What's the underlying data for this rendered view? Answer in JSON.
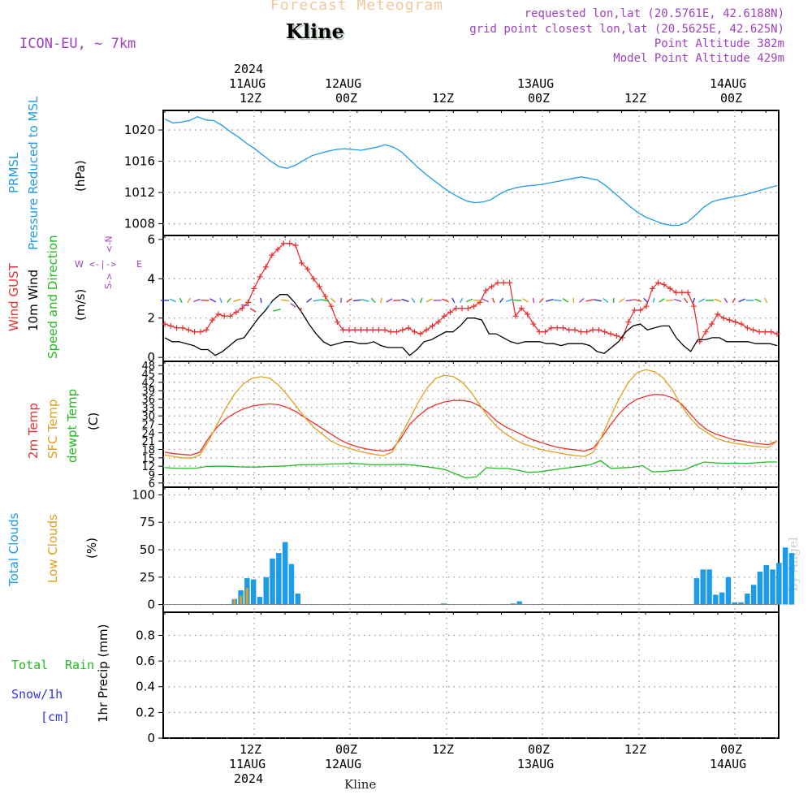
{
  "header": {
    "title": "Forecast Meteogram",
    "location": "Kline",
    "model": "ICON-EU, ~ 7km",
    "requested": "requested lon,lat (20.5761E, 42.6188N)",
    "gridpoint": "grid point closest lon,lat (20.5625E, 42.625N)",
    "point_alt": "Point Altitude 382m",
    "model_alt": "Model Point Altitude 429m",
    "credit": "by Angel",
    "footer_location": "Kline"
  },
  "colors": {
    "pressure": "#1e9be6",
    "gust": "#e83232",
    "wind": "#000000",
    "direction": "#22bb22",
    "t2m": "#e83232",
    "sfc": "#e0a020",
    "dewpt": "#22bb22",
    "clouds_total": "#1e9be6",
    "clouds_low": "#e0a020",
    "rain": "#22bb22",
    "snow": "#3333dd",
    "compass": "#a040c0",
    "meta": "#a040c0"
  },
  "time_axis": {
    "top": [
      {
        "tick": "12Z",
        "date": "11AUG",
        "year": "2024"
      },
      {
        "tick": "00Z",
        "date": "12AUG",
        "year": ""
      },
      {
        "tick": "12Z",
        "date": "",
        "year": ""
      },
      {
        "tick": "00Z",
        "date": "13AUG",
        "year": ""
      },
      {
        "tick": "12Z",
        "date": "",
        "year": ""
      },
      {
        "tick": "00Z",
        "date": "14AUG",
        "year": ""
      }
    ],
    "bottom": [
      {
        "tick": "12Z",
        "date": "11AUG",
        "year": "2024"
      },
      {
        "tick": "00Z",
        "date": "12AUG",
        "year": ""
      },
      {
        "tick": "12Z",
        "date": "",
        "year": ""
      },
      {
        "tick": "00Z",
        "date": "13AUG",
        "year": ""
      },
      {
        "tick": "12Z",
        "date": "",
        "year": ""
      },
      {
        "tick": "00Z",
        "date": "14AUG",
        "year": ""
      }
    ]
  },
  "panel_labels": {
    "pressure": {
      "line1": "PRMSL",
      "line2": "Pressure Reduced to MSL",
      "unit": "(hPa)"
    },
    "wind": {
      "gust": "Wind GUST",
      "wind": "10m Wind",
      "dir": "Speed and Direction",
      "unit": "(m/s)",
      "compass_n": "N",
      "compass_s": "S",
      "compass_w": "W",
      "compass_e": "E"
    },
    "temp": {
      "t2m": "2m Temp",
      "sfc": "SFC Temp",
      "dewpt": "dewpt Temp",
      "unit": "(C)"
    },
    "clouds": {
      "total": "Total Clouds",
      "low": "Low Clouds",
      "unit": "(%)"
    },
    "precip": {
      "rain_total": "Total",
      "rain": "Rain",
      "snow": "Snow/1h",
      "snow_unit": "[cm]",
      "ylabel": "1hr Precip (mm)"
    }
  },
  "chart_data": [
    {
      "type": "line",
      "name": "pressure",
      "ylim": [
        1006.5,
        1022.5
      ],
      "yticks": [
        {
          "v": 1008,
          "l": "1008"
        },
        {
          "v": 1012,
          "l": "1012"
        },
        {
          "v": 1016,
          "l": "1016"
        },
        {
          "v": 1020,
          "l": "1020"
        }
      ],
      "series": [
        {
          "values": [
            1021.4,
            1020.9,
            1021.0,
            1021.2,
            1021.7,
            1021.3,
            1021.2,
            1020.6,
            1019.8,
            1019.1,
            1018.3,
            1017.6,
            1016.8,
            1016.0,
            1015.3,
            1015.1,
            1015.5,
            1016.1,
            1016.7,
            1017.0,
            1017.3,
            1017.5,
            1017.6,
            1017.5,
            1017.4,
            1017.6,
            1017.8,
            1018.1,
            1017.8,
            1017.2,
            1016.2,
            1015.2,
            1014.3,
            1013.5,
            1012.7,
            1012.0,
            1011.4,
            1010.9,
            1010.7,
            1010.8,
            1011.1,
            1011.8,
            1012.3,
            1012.6,
            1012.8,
            1012.9,
            1013.0,
            1013.2,
            1013.4,
            1013.6,
            1013.8,
            1014.0,
            1013.8,
            1013.6,
            1012.9,
            1012.0,
            1011.1,
            1010.2,
            1009.4,
            1008.8,
            1008.4,
            1008.0,
            1007.8,
            1007.8,
            1008.2,
            1009.1,
            1010.1,
            1010.8,
            1011.1,
            1011.3,
            1011.5,
            1011.7,
            1012.0,
            1012.3,
            1012.6,
            1012.9
          ]
        }
      ]
    },
    {
      "type": "line",
      "name": "wind",
      "ylim": [
        -0.2,
        6.2
      ],
      "yticks": [
        {
          "v": 0,
          "l": "0"
        },
        {
          "v": 2,
          "l": "2"
        },
        {
          "v": 4,
          "l": "4"
        },
        {
          "v": 6,
          "l": "6"
        }
      ],
      "series": [
        {
          "name": "Wind GUST",
          "values": [
            1.7,
            1.6,
            1.5,
            1.5,
            1.4,
            1.3,
            1.3,
            1.4,
            1.9,
            2.2,
            2.1,
            2.1,
            2.3,
            2.5,
            2.8,
            3.5,
            4.1,
            4.6,
            5.2,
            5.5,
            5.8,
            5.8,
            5.7,
            4.8,
            4.5,
            4.0,
            3.6,
            3.1,
            2.6,
            1.8,
            1.4,
            1.4,
            1.4,
            1.4,
            1.4,
            1.4,
            1.4,
            1.4,
            1.3,
            1.3,
            1.4,
            1.5,
            1.3,
            1.2,
            1.4,
            1.6,
            1.8,
            2.1,
            2.3,
            2.5,
            2.5,
            2.5,
            2.6,
            2.8,
            3.4,
            3.6,
            3.8,
            3.8,
            3.8,
            2.1,
            2.5,
            2.2,
            1.7,
            1.3,
            1.3,
            1.5,
            1.5,
            1.5,
            1.4,
            1.4,
            1.3,
            1.3,
            1.4,
            1.4,
            1.3,
            1.2,
            1.1,
            1.0,
            1.8,
            2.4,
            2.4,
            2.6,
            3.5,
            3.8,
            3.7,
            3.5,
            3.3,
            3.3,
            3.3,
            2.6,
            0.8,
            1.3,
            1.7,
            2.2,
            2.0,
            1.9,
            1.8,
            1.7,
            1.5,
            1.4,
            1.3,
            1.3,
            1.3,
            1.2
          ]
        },
        {
          "name": "10m Wind",
          "values": [
            1.0,
            0.8,
            0.8,
            0.7,
            0.6,
            0.4,
            0.4,
            0.1,
            0.3,
            0.6,
            0.9,
            1.0,
            1.5,
            2.0,
            2.4,
            2.9,
            3.2,
            3.2,
            2.8,
            2.3,
            1.7,
            1.2,
            0.8,
            0.6,
            0.7,
            0.8,
            0.8,
            0.7,
            0.7,
            0.8,
            0.6,
            0.5,
            0.5,
            0.5,
            0.1,
            0.4,
            0.8,
            0.9,
            1.1,
            1.3,
            1.3,
            1.6,
            2.0,
            2.0,
            1.9,
            1.2,
            1.2,
            1.0,
            0.8,
            0.7,
            0.8,
            0.8,
            0.8,
            0.7,
            0.7,
            0.6,
            0.7,
            0.7,
            0.7,
            0.6,
            0.3,
            0.2,
            0.5,
            0.8,
            1.3,
            1.6,
            1.7,
            1.4,
            1.5,
            1.6,
            1.6,
            1.0,
            0.6,
            0.3,
            0.9,
            0.9,
            1.0,
            1.0,
            0.8,
            0.8,
            0.8,
            0.8,
            0.7,
            0.7,
            0.7,
            0.6
          ]
        }
      ]
    },
    {
      "type": "line",
      "name": "temperature",
      "ylim": [
        4.5,
        49.5
      ],
      "yticks": [
        {
          "v": 6,
          "l": "6"
        },
        {
          "v": 9,
          "l": "9"
        },
        {
          "v": 12,
          "l": "12"
        },
        {
          "v": 15,
          "l": "15"
        },
        {
          "v": 18,
          "l": "18"
        },
        {
          "v": 21,
          "l": "21"
        },
        {
          "v": 24,
          "l": "24"
        },
        {
          "v": 27,
          "l": "27"
        },
        {
          "v": 30,
          "l": "30"
        },
        {
          "v": 33,
          "l": "33"
        },
        {
          "v": 36,
          "l": "36"
        },
        {
          "v": 39,
          "l": "39"
        },
        {
          "v": 42,
          "l": "42"
        },
        {
          "v": 45,
          "l": "45"
        },
        {
          "v": 48,
          "l": "48"
        }
      ],
      "series": [
        {
          "name": "2m Temp",
          "values": [
            17.0,
            16.5,
            16.2,
            16.0,
            17.0,
            22.0,
            26.0,
            29.0,
            31.0,
            32.5,
            33.5,
            34.0,
            34.3,
            34.0,
            33.0,
            31.5,
            29.5,
            27.5,
            25.5,
            23.5,
            21.5,
            20.0,
            19.0,
            18.2,
            17.7,
            17.4,
            18.0,
            22.0,
            27.0,
            30.0,
            32.5,
            34.0,
            35.0,
            35.5,
            35.5,
            35.0,
            33.5,
            31.0,
            28.0,
            26.0,
            24.5,
            23.0,
            21.5,
            20.5,
            19.5,
            18.7,
            18.2,
            17.8,
            17.4,
            18.5,
            22.5,
            27.0,
            31.0,
            34.0,
            36.0,
            37.0,
            37.7,
            37.5,
            36.5,
            34.5,
            31.0,
            27.5,
            25.0,
            23.5,
            22.5,
            21.5,
            21.0,
            20.5,
            20.0,
            19.7,
            21.0
          ]
        },
        {
          "name": "SFC Temp",
          "values": [
            16.0,
            15.5,
            15.0,
            14.8,
            16.0,
            21.0,
            27.0,
            33.0,
            38.0,
            41.5,
            43.5,
            44.0,
            43.5,
            41.0,
            37.5,
            33.5,
            29.5,
            26.0,
            23.5,
            21.0,
            19.5,
            18.5,
            17.5,
            16.8,
            16.2,
            15.8,
            17.0,
            23.0,
            29.0,
            35.0,
            40.0,
            43.5,
            44.5,
            44.0,
            42.0,
            38.5,
            34.0,
            29.5,
            26.0,
            23.5,
            21.5,
            20.0,
            19.0,
            18.0,
            17.3,
            16.8,
            16.2,
            15.8,
            15.5,
            17.0,
            23.0,
            30.0,
            36.5,
            42.0,
            45.5,
            46.5,
            45.8,
            43.5,
            39.5,
            34.0,
            29.5,
            26.0,
            24.0,
            22.0,
            21.0,
            20.3,
            19.8,
            19.3,
            19.0,
            18.7,
            21.0
          ]
        },
        {
          "name": "dewpt Temp",
          "values": [
            11.5,
            11.3,
            11.2,
            11.3,
            11.9,
            12.0,
            12.0,
            11.8,
            11.7,
            11.7,
            11.9,
            12.0,
            12.2,
            12.5,
            12.6,
            12.6,
            12.8,
            12.9,
            13.0,
            12.8,
            12.5,
            12.6,
            12.6,
            12.7,
            12.4,
            11.9,
            11.4,
            10.8,
            9.3,
            7.8,
            8.2,
            11.5,
            11.2,
            11.2,
            10.6,
            9.8,
            10.0,
            10.5,
            11.0,
            11.5,
            12.0,
            12.5,
            14.0,
            11.2,
            11.4,
            11.6,
            12.2,
            10.0,
            10.1,
            10.5,
            10.6,
            12.2,
            13.5,
            13.2,
            13.0,
            13.1,
            13.0,
            13.2,
            13.5,
            13.5
          ]
        }
      ]
    },
    {
      "type": "bar",
      "name": "clouds",
      "ylim": [
        -7,
        107
      ],
      "yticks": [
        {
          "v": 0,
          "l": "0"
        },
        {
          "v": 25,
          "l": "25"
        },
        {
          "v": 50,
          "l": "50"
        },
        {
          "v": 75,
          "l": "75"
        },
        {
          "v": 100,
          "l": "100"
        }
      ],
      "series": [
        {
          "name": "Total Clouds",
          "values": [
            {
              "t": 11,
              "v": 5
            },
            {
              "t": 12,
              "v": 13
            },
            {
              "t": 13,
              "v": 24
            },
            {
              "t": 14,
              "v": 23
            },
            {
              "t": 15,
              "v": 7
            },
            {
              "t": 16,
              "v": 25
            },
            {
              "t": 17,
              "v": 42
            },
            {
              "t": 18,
              "v": 47
            },
            {
              "t": 19,
              "v": 57
            },
            {
              "t": 20,
              "v": 37
            },
            {
              "t": 21,
              "v": 10
            },
            {
              "t": 44,
              "v": 1
            },
            {
              "t": 55,
              "v": 1
            },
            {
              "t": 56,
              "v": 3
            },
            {
              "t": 84,
              "v": 24
            },
            {
              "t": 85,
              "v": 32
            },
            {
              "t": 86,
              "v": 32
            },
            {
              "t": 87,
              "v": 9
            },
            {
              "t": 88,
              "v": 11
            },
            {
              "t": 89,
              "v": 25
            },
            {
              "t": 90,
              "v": 2
            },
            {
              "t": 91,
              "v": 2
            },
            {
              "t": 92,
              "v": 10
            },
            {
              "t": 93,
              "v": 18
            },
            {
              "t": 94,
              "v": 30
            },
            {
              "t": 95,
              "v": 36
            },
            {
              "t": 96,
              "v": 32
            },
            {
              "t": 97,
              "v": 38
            },
            {
              "t": 98,
              "v": 52
            },
            {
              "t": 99,
              "v": 47
            }
          ]
        },
        {
          "name": "Low Clouds",
          "values": [
            {
              "t": 11,
              "v": 5
            },
            {
              "t": 12,
              "v": 8
            },
            {
              "t": 13,
              "v": 15
            }
          ]
        }
      ]
    },
    {
      "type": "bar",
      "name": "precip",
      "ylim": [
        0,
        0.98
      ],
      "yticks": [
        {
          "v": 0,
          "l": "0"
        },
        {
          "v": 0.2,
          "l": "0.2"
        },
        {
          "v": 0.4,
          "l": "0.4"
        },
        {
          "v": 0.6,
          "l": "0.6"
        },
        {
          "v": 0.8,
          "l": "0.8"
        }
      ],
      "series": []
    }
  ]
}
